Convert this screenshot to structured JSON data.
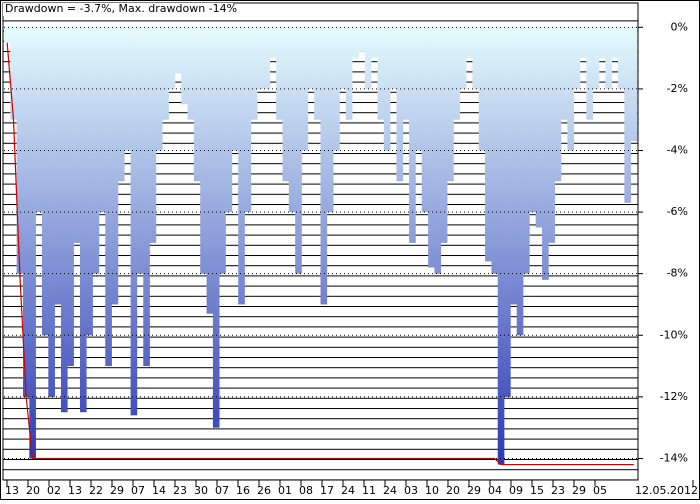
{
  "chart_data": {
    "type": "drawdown",
    "title": "Drawdown = -3.7%, Max. drawdown -14%",
    "x_labels": [
      "13",
      "20",
      "02",
      "13",
      "22",
      "29",
      "07",
      "14",
      "23",
      "30",
      "07",
      "16",
      "26",
      "01",
      "08",
      "17",
      "24",
      "11",
      "24",
      "03",
      "10",
      "20",
      "29",
      "04",
      "09",
      "15",
      "23",
      "29",
      "05",
      "12.05.2012"
    ],
    "ylim": [
      -14.7,
      0.4
    ],
    "yticks": [
      {
        "value": 0,
        "label": "0%"
      },
      {
        "value": -2,
        "label": "-2%"
      },
      {
        "value": -4,
        "label": "-4%"
      },
      {
        "value": -6,
        "label": "-6%"
      },
      {
        "value": -8,
        "label": "-8%"
      },
      {
        "value": -10,
        "label": "-10%"
      },
      {
        "value": -12,
        "label": "-12%"
      },
      {
        "value": -14,
        "label": "-14%"
      }
    ],
    "gradient": [
      "#e4fbfd",
      "#2f3bb5"
    ],
    "series": [
      {
        "color": "gradient",
        "values": [
          -0.5,
          -3,
          -8,
          -12,
          -14,
          -6,
          -10,
          -12,
          -9,
          -12.5,
          -11,
          -7,
          -12.5,
          -10,
          -8,
          -6,
          -11,
          -9,
          -5,
          -4,
          -12.6,
          -8,
          -11,
          -7,
          -4,
          -3,
          -2,
          -1.5,
          -2.5,
          -3,
          -5,
          -8,
          -9.3,
          -13,
          -8,
          -6,
          -4,
          -9,
          -6,
          -3,
          -2,
          -2,
          -1,
          -3,
          -5,
          -6,
          -8,
          -4,
          -2,
          -3,
          -9,
          -6,
          -4,
          -2,
          -3,
          -1,
          -0.8,
          -2,
          -1,
          -3,
          -4,
          -2,
          -5,
          -3,
          -7,
          -4,
          -6,
          -7.8,
          -8,
          -7,
          -5,
          -3,
          -2,
          -1,
          -2,
          -4,
          -7.6,
          -8,
          -14.2,
          -12,
          -9,
          -10,
          -8,
          -6,
          -6.5,
          -8.2,
          -7,
          -5,
          -3,
          -4,
          -2,
          -1,
          -3,
          -2,
          -1,
          -2,
          -1,
          -2,
          -5.7,
          -3.7
        ]
      },
      {
        "color": "#cc0000",
        "values": [
          -0.5,
          -3,
          -8,
          -12,
          -14,
          -14,
          -14,
          -14,
          -14,
          -14,
          -14,
          -14,
          -14,
          -14,
          -14,
          -14,
          -14,
          -14,
          -14,
          -14,
          -14,
          -14,
          -14,
          -14,
          -14,
          -14,
          -14,
          -14,
          -14,
          -14,
          -14,
          -14,
          -14,
          -14,
          -14,
          -14,
          -14,
          -14,
          -14,
          -14,
          -14,
          -14,
          -14,
          -14,
          -14,
          -14,
          -14,
          -14,
          -14,
          -14,
          -14,
          -14,
          -14,
          -14,
          -14,
          -14,
          -14,
          -14,
          -14,
          -14,
          -14,
          -14,
          -14,
          -14,
          -14,
          -14,
          -14,
          -14,
          -14,
          -14,
          -14,
          -14,
          -14,
          -14,
          -14,
          -14,
          -14,
          -14,
          -14.2,
          -14.2,
          -14.2,
          -14.2,
          -14.2,
          -14.2,
          -14.2,
          -14.2,
          -14.2,
          -14.2,
          -14.2,
          -14.2,
          -14.2,
          -14.2,
          -14.2,
          -14.2,
          -14.2,
          -14.2,
          -14.2,
          -14.2,
          -14.2,
          -14.2
        ]
      }
    ]
  }
}
